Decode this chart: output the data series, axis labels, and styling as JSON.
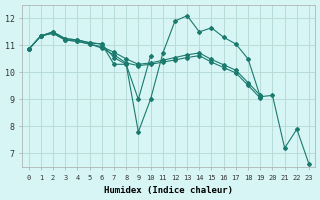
{
  "xlabel": "Humidex (Indice chaleur)",
  "background_color": "#d8f5f5",
  "grid_color": "#b8dcd8",
  "line_color": "#1a7a6e",
  "xlim": [
    -0.5,
    23.5
  ],
  "ylim": [
    6.5,
    12.5
  ],
  "xticks": [
    0,
    1,
    2,
    3,
    4,
    5,
    6,
    7,
    8,
    9,
    10,
    11,
    12,
    13,
    14,
    15,
    16,
    17,
    18,
    19,
    20,
    21,
    22,
    23
  ],
  "yticks": [
    7,
    8,
    9,
    10,
    11,
    12
  ],
  "series": [
    {
      "x": [
        0,
        1,
        2,
        3,
        4,
        5,
        6,
        7,
        8,
        9,
        10,
        11,
        12,
        13,
        14,
        15,
        16,
        17,
        18,
        19,
        20,
        21,
        22,
        23
      ],
      "y": [
        10.85,
        11.35,
        11.5,
        11.25,
        11.2,
        11.1,
        11.05,
        10.3,
        10.3,
        7.8,
        9.0,
        10.7,
        11.9,
        12.1,
        11.5,
        11.65,
        11.3,
        11.05,
        10.5,
        9.1,
        9.15,
        7.2,
        7.9,
        6.6
      ]
    },
    {
      "x": [
        0,
        1,
        2,
        3,
        4,
        5,
        6,
        7,
        8,
        9,
        10
      ],
      "y": [
        10.85,
        11.35,
        11.5,
        11.25,
        11.2,
        11.1,
        11.05,
        10.55,
        10.3,
        9.0,
        10.6
      ]
    },
    {
      "x": [
        0,
        1,
        2,
        3,
        4,
        5,
        6,
        7,
        8,
        9,
        10,
        11,
        12,
        13,
        14,
        15,
        16,
        17,
        18,
        19
      ],
      "y": [
        10.85,
        11.35,
        11.45,
        11.2,
        11.15,
        11.05,
        10.95,
        10.75,
        10.5,
        10.3,
        10.35,
        10.45,
        10.55,
        10.65,
        10.72,
        10.48,
        10.28,
        10.08,
        9.62,
        9.15
      ]
    },
    {
      "x": [
        0,
        1,
        2,
        3,
        4,
        5,
        6,
        7,
        8,
        9,
        10,
        11,
        12,
        13,
        14,
        15,
        16,
        17,
        18,
        19
      ],
      "y": [
        10.85,
        11.35,
        11.45,
        11.2,
        11.15,
        11.05,
        10.9,
        10.65,
        10.35,
        10.25,
        10.3,
        10.38,
        10.46,
        10.55,
        10.62,
        10.38,
        10.18,
        9.98,
        9.52,
        9.05
      ]
    }
  ]
}
